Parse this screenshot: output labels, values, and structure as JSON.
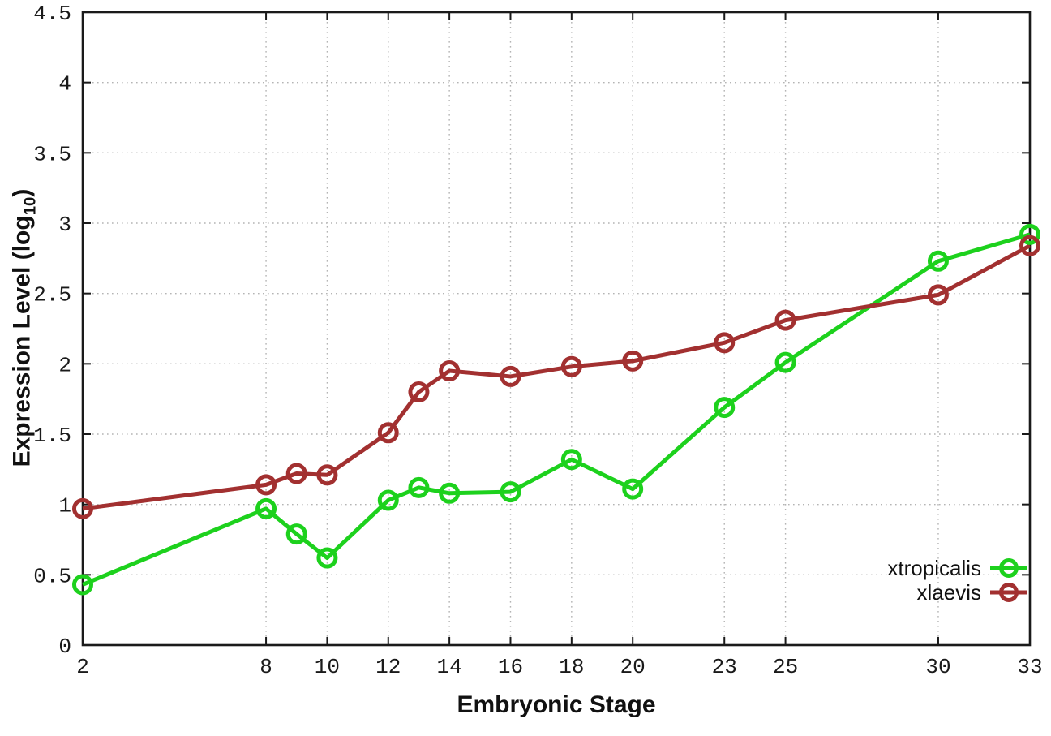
{
  "chart_data": {
    "type": "line",
    "title": "",
    "xlabel": "Embryonic Stage",
    "ylabel": {
      "prefix": "Expression Level (log",
      "subscript": "10",
      "suffix": ")"
    },
    "x": [
      2,
      8,
      9,
      10,
      12,
      13,
      14,
      16,
      18,
      20,
      23,
      25,
      30,
      33
    ],
    "series": [
      {
        "name": "xtropicalis",
        "color": "#1dd11d",
        "values": [
          0.43,
          0.97,
          0.79,
          0.62,
          1.03,
          1.12,
          1.08,
          1.09,
          1.32,
          1.11,
          1.69,
          2.01,
          2.73,
          2.92
        ]
      },
      {
        "name": "xlaevis",
        "color": "#a23030",
        "values": [
          0.97,
          1.14,
          1.22,
          1.21,
          1.51,
          1.8,
          1.95,
          1.91,
          1.98,
          2.02,
          2.15,
          2.31,
          2.49,
          2.84
        ]
      }
    ],
    "xlim": [
      2,
      33
    ],
    "ylim": [
      0,
      4.5
    ],
    "x_ticks": [
      2,
      8,
      10,
      12,
      14,
      16,
      18,
      20,
      23,
      25,
      30,
      33
    ],
    "x_tick_labels": [
      "2",
      "8",
      "10",
      "12",
      "14",
      "16",
      "18",
      "20",
      "23",
      "25",
      "30",
      "33"
    ],
    "y_ticks": [
      0,
      0.5,
      1,
      1.5,
      2,
      2.5,
      3,
      3.5,
      4,
      4.5
    ],
    "y_tick_labels": [
      "0",
      "0.5",
      "1",
      "1.5",
      "2",
      "2.5",
      "3",
      "3.5",
      "4",
      "4.5"
    ],
    "grid": true,
    "grid_style": "dotted",
    "legend_position": "bottom-right",
    "marker": "open-circle",
    "axis_color": "#1a1a1a",
    "grid_color": "#b4b4b4",
    "background_color": "#ffffff"
  }
}
